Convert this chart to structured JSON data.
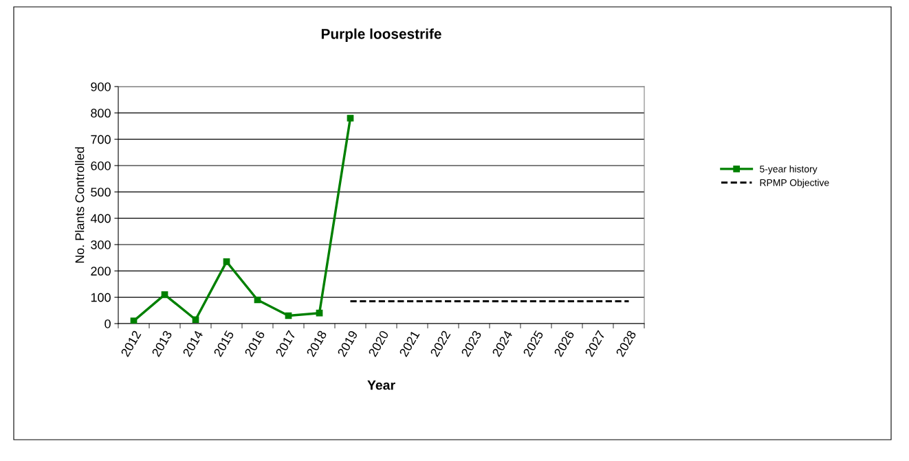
{
  "chart_data": {
    "type": "line",
    "title": "Purple loosestrife",
    "xlabel": "Year",
    "ylabel": "No. Plants Controlled",
    "categories": [
      "2012",
      "2013",
      "2014",
      "2015",
      "2016",
      "2017",
      "2018",
      "2019",
      "2020",
      "2021",
      "2022",
      "2023",
      "2024",
      "2025",
      "2026",
      "2027",
      "2028"
    ],
    "series": [
      {
        "name": "5-year history",
        "color": "#008000",
        "marker": "square",
        "line_style": "solid",
        "values": [
          10,
          110,
          15,
          235,
          90,
          30,
          40,
          780,
          null,
          null,
          null,
          null,
          null,
          null,
          null,
          null,
          null
        ]
      },
      {
        "name": "RPMP Objective",
        "color": "#000000",
        "marker": "none",
        "line_style": "dashed",
        "values": [
          null,
          null,
          null,
          null,
          null,
          null,
          null,
          85,
          85,
          85,
          85,
          85,
          85,
          85,
          85,
          85,
          85
        ]
      }
    ],
    "ylim": [
      0,
      900
    ],
    "yticks": [
      0,
      100,
      200,
      300,
      400,
      500,
      600,
      700,
      800,
      900
    ],
    "grid": "y",
    "legend": "right"
  }
}
